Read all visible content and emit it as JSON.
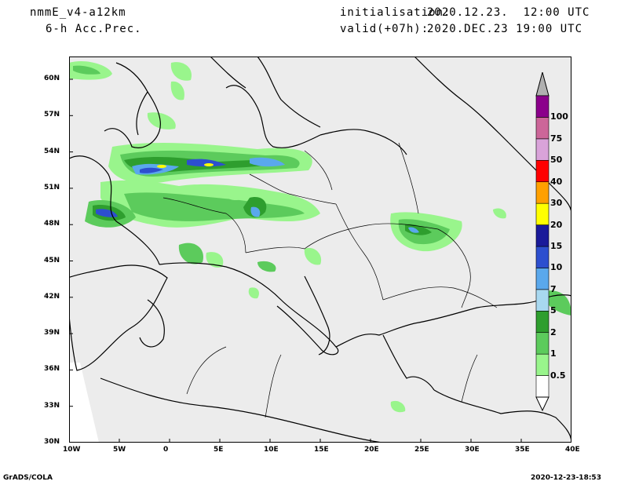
{
  "header": {
    "model": "nmmE_v4-a12km",
    "product": "6-h Acc.Prec.",
    "init_label": "initialisation:",
    "init_value": "2020.12.23.  12:00 UTC",
    "valid_label": "valid(+07h):",
    "valid_value": "2020.DEC.23 19:00 UTC"
  },
  "footer": {
    "software": "GrADS/COLA",
    "timestamp": "2020-12-23-18:53"
  },
  "axes": {
    "lat_labels": [
      "60N",
      "57N",
      "54N",
      "51N",
      "48N",
      "45N",
      "42N",
      "39N",
      "36N",
      "33N",
      "30N"
    ],
    "lon_labels": [
      "10W",
      "5W",
      "0",
      "5E",
      "10E",
      "15E",
      "20E",
      "25E",
      "30E",
      "35E",
      "40E"
    ]
  },
  "colorbar": {
    "levels": [
      "0.5",
      "1",
      "2",
      "5",
      "7",
      "10",
      "15",
      "20",
      "30",
      "40",
      "50",
      "75",
      "100"
    ],
    "colors": [
      "#ffffff",
      "#99f58c",
      "#5ccb5c",
      "#2e9e2e",
      "#a8d8f0",
      "#5aa8ec",
      "#2d4fcf",
      "#1a1a9a",
      "#ffff00",
      "#ffa000",
      "#ff0000",
      "#d9a3d9",
      "#cc6699",
      "#8b008b",
      "#b0b0b0"
    ]
  },
  "map_style": {
    "sea_color": "#ececec",
    "land_color": "#f0f0f0",
    "coast_color": "#000000"
  }
}
